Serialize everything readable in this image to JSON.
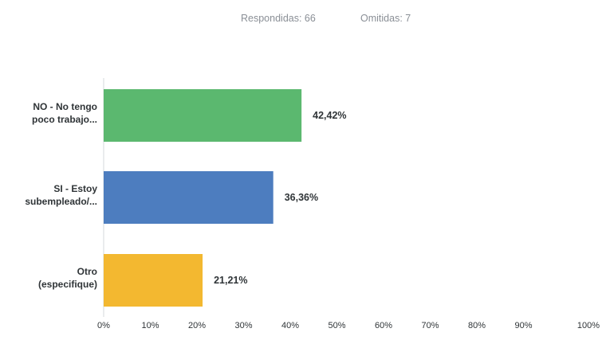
{
  "summary": {
    "answered": "Respondidas: 66",
    "skipped": "Omitidas: 7"
  },
  "chart_data": {
    "type": "bar",
    "orientation": "horizontal",
    "categories": [
      [
        "NO - No tengo",
        "poco trabajo..."
      ],
      [
        "SI - Estoy",
        "subempleado/..."
      ],
      [
        "Otro",
        "(especifique)"
      ]
    ],
    "values": [
      42.42,
      36.36,
      21.21
    ],
    "value_labels": [
      "42,42%",
      "36,36%",
      "21,21%"
    ],
    "colors": [
      "#5bb86f",
      "#4d7dbf",
      "#f3b830"
    ],
    "xlim": [
      0,
      100
    ],
    "ticks": [
      "0%",
      "10%",
      "20%",
      "30%",
      "40%",
      "50%",
      "60%",
      "70%",
      "80%",
      "90%",
      "100%"
    ],
    "grid": false,
    "legend": "none"
  }
}
